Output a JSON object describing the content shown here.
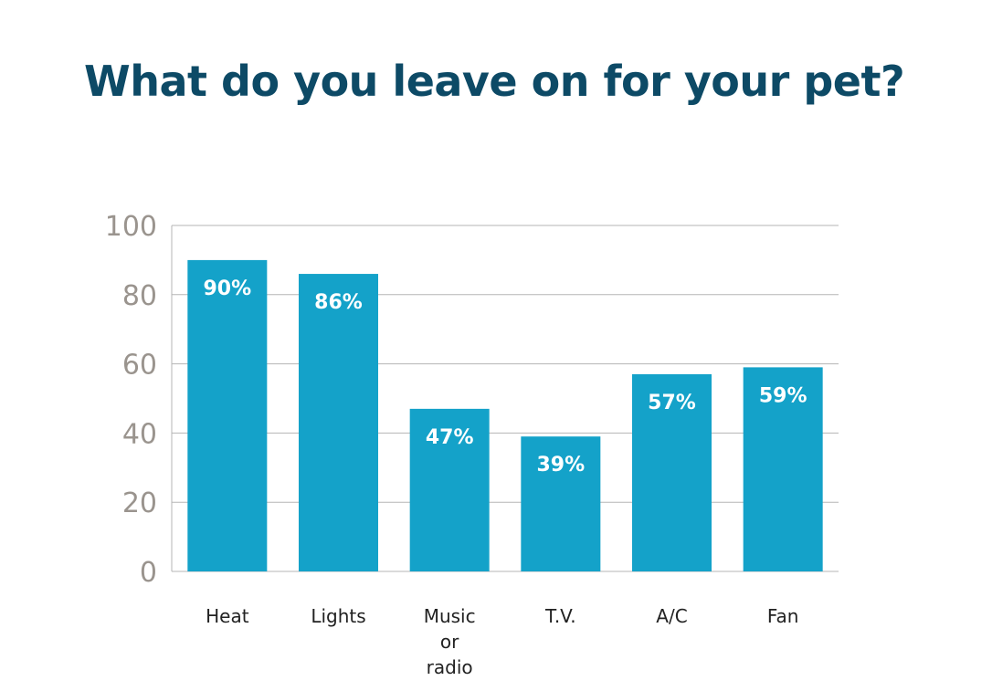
{
  "chart_data": {
    "type": "bar",
    "title": "What do you leave on for your pet?",
    "xlabel": "",
    "ylabel": "",
    "categories": [
      [
        "Heat"
      ],
      [
        "Lights"
      ],
      [
        "Music",
        "or",
        "radio"
      ],
      [
        "T.V."
      ],
      [
        "A/C"
      ],
      [
        "Fan"
      ]
    ],
    "values": [
      90,
      86,
      47,
      39,
      57,
      59
    ],
    "data_labels": [
      "90%",
      "86%",
      "47%",
      "39%",
      "57%",
      "59%"
    ],
    "ylim": [
      0,
      100
    ],
    "yticks": [
      0,
      20,
      40,
      60,
      80,
      100
    ],
    "grid": true,
    "legend": "none",
    "colors": {
      "bar": "#14a2c9",
      "title": "#0d4a66",
      "grid": "#b5b5b5",
      "ytick": "#9a948e"
    }
  }
}
